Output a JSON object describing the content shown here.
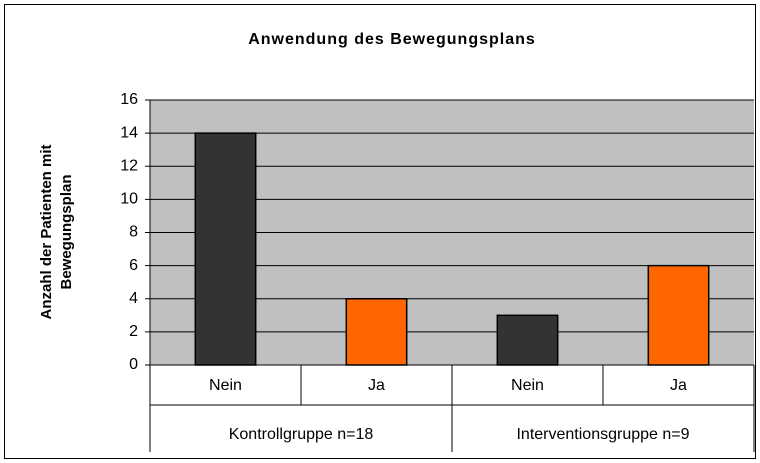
{
  "chart_data": {
    "type": "bar",
    "title": "Anwendung des Bewegungsplans",
    "ylabel": [
      "Anzahl der Patienten mit",
      "Bewegungsplan"
    ],
    "categories": [
      "Nein",
      "Ja",
      "Nein",
      "Ja"
    ],
    "groups": [
      "Kontrollgruppe n=18",
      "Interventionsgruppe n=9"
    ],
    "values": [
      14,
      4,
      3,
      6
    ],
    "colors": [
      "#333333",
      "#ff6600",
      "#333333",
      "#ff6600"
    ],
    "plot_background": "#c0c0c0",
    "ylim": [
      0,
      16
    ],
    "yticks": [
      0,
      2,
      4,
      6,
      8,
      10,
      12,
      14,
      16
    ],
    "grid": true
  }
}
